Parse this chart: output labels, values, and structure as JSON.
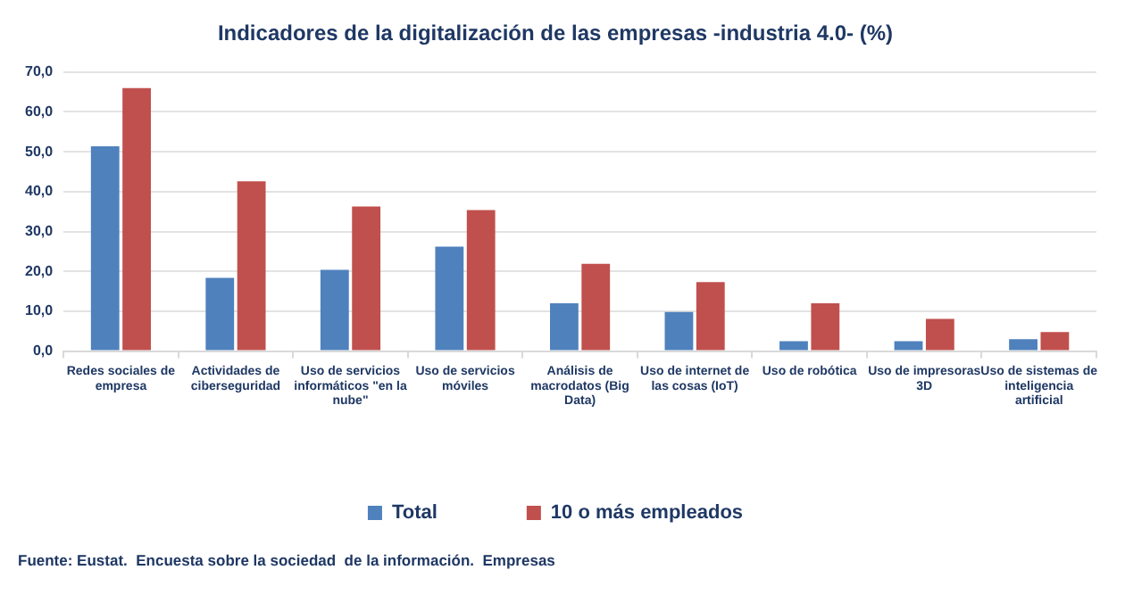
{
  "chart_data": {
    "type": "bar",
    "title": "Indicadores de la digitalización de las empresas -industria 4.0- (%)",
    "categories": [
      "Redes sociales de empresa",
      "Actividades de ciberseguridad",
      "Uso de servicios informáticos \"en la nube\"",
      "Uso de servicios móviles",
      "Análisis de macrodatos (Big Data)",
      "Uso de internet de las cosas (IoT)",
      "Uso de robótica",
      "Uso de impresoras 3D",
      "Uso de sistemas de inteligencia artificial"
    ],
    "series": [
      {
        "name": "Total",
        "color": "#4f81bd",
        "values": [
          51.4,
          18.4,
          20.4,
          26.2,
          12.0,
          9.8,
          2.5,
          2.5,
          3.0
        ]
      },
      {
        "name": "10 o más empleados",
        "color": "#c0504d",
        "values": [
          66.0,
          42.6,
          36.3,
          35.4,
          21.9,
          17.3,
          12.0,
          8.1,
          4.8
        ]
      }
    ],
    "ylim": [
      0,
      70
    ],
    "yticks": [
      {
        "value": 0,
        "label": "0,0"
      },
      {
        "value": 10,
        "label": "10,0"
      },
      {
        "value": 20,
        "label": "20,0"
      },
      {
        "value": 30,
        "label": "30,0"
      },
      {
        "value": 40,
        "label": "40,0"
      },
      {
        "value": 50,
        "label": "50,0"
      },
      {
        "value": 60,
        "label": "60,0"
      },
      {
        "value": 70,
        "label": "70,0"
      }
    ],
    "grid": "y",
    "legend": "bottom",
    "annotations": [
      "Fuente: Eustat.  Encuesta sobre la sociedad  de la información.  Empresas"
    ]
  }
}
